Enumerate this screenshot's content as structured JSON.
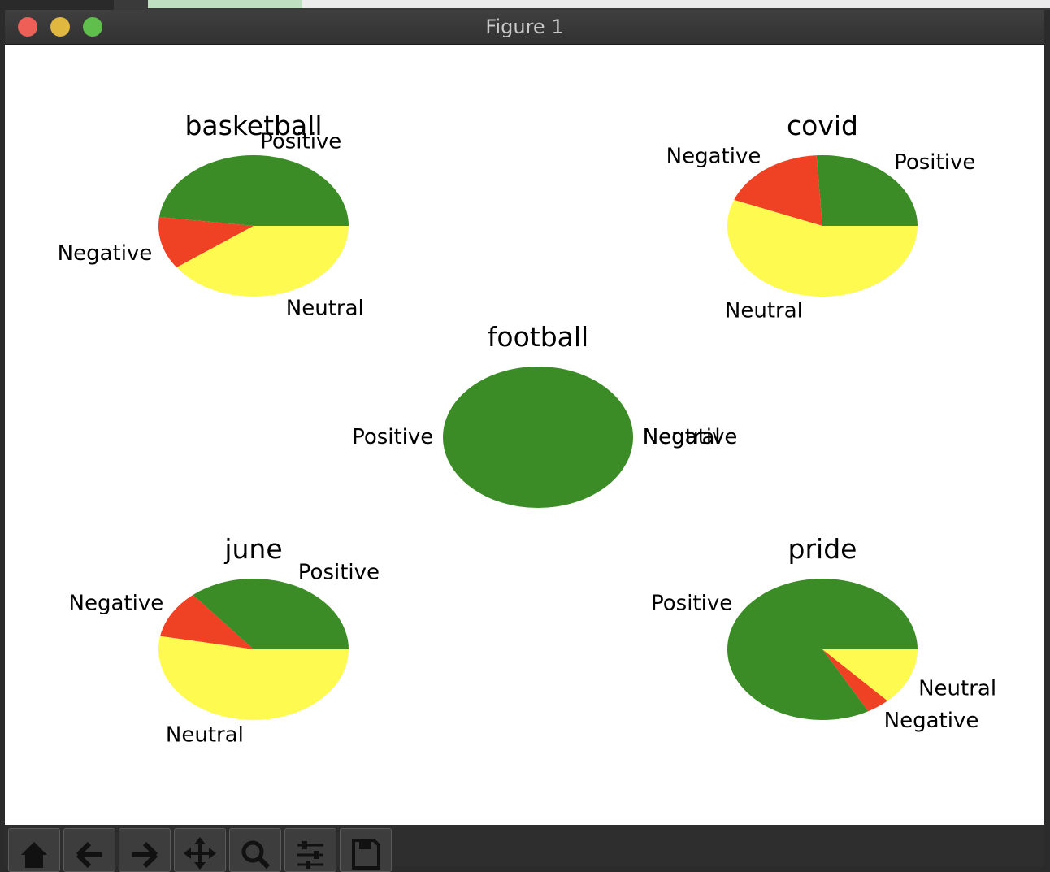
{
  "window": {
    "title": "Figure 1"
  },
  "colors": {
    "positive": "#3b8c26",
    "negative": "#ef4124",
    "neutral": "#fefa4f",
    "close": "#ee5f57",
    "minimize": "#e0b73f",
    "zoom": "#5fbe4c"
  },
  "toolbar": {
    "buttons": [
      "home-icon",
      "back-arrow-icon",
      "forward-arrow-icon",
      "pan-move-icon",
      "zoom-magnifier-icon",
      "configure-subplots-icon",
      "save-floppy-icon"
    ]
  },
  "chart_data": [
    {
      "type": "pie",
      "title": "basketball",
      "labels": [
        "Positive",
        "Negative",
        "Neutral"
      ],
      "values": [
        48,
        12,
        40
      ],
      "colors": [
        "#3b8c26",
        "#ef4124",
        "#fefa4f"
      ]
    },
    {
      "type": "pie",
      "title": "covid",
      "labels": [
        "Positive",
        "Negative",
        "Neutral"
      ],
      "values": [
        26,
        18,
        56
      ],
      "colors": [
        "#3b8c26",
        "#ef4124",
        "#fefa4f"
      ]
    },
    {
      "type": "pie",
      "title": "football",
      "labels": [
        "Positive",
        "Negative",
        "Neutral"
      ],
      "values": [
        100,
        0,
        0
      ],
      "colors": [
        "#3b8c26",
        "#ef4124",
        "#fefa4f"
      ]
    },
    {
      "type": "pie",
      "title": "june",
      "labels": [
        "Positive",
        "Negative",
        "Neutral"
      ],
      "values": [
        36,
        11,
        53
      ],
      "colors": [
        "#3b8c26",
        "#ef4124",
        "#fefa4f"
      ]
    },
    {
      "type": "pie",
      "title": "pride",
      "labels": [
        "Positive",
        "Negative",
        "Neutral"
      ],
      "values": [
        83,
        4,
        13
      ],
      "colors": [
        "#3b8c26",
        "#ef4124",
        "#fefa4f"
      ]
    }
  ]
}
